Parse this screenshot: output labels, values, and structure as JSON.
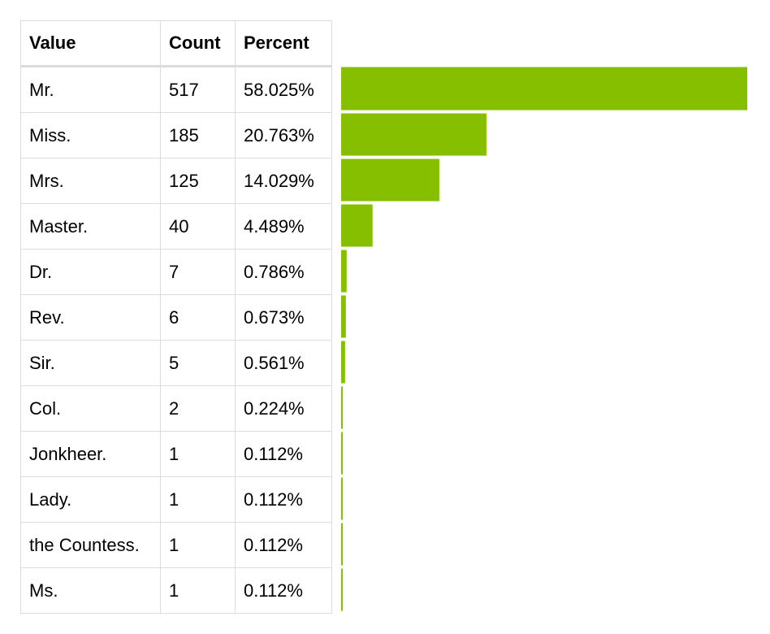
{
  "table": {
    "headers": {
      "value": "Value",
      "count": "Count",
      "percent": "Percent"
    },
    "rows": [
      {
        "value": "Mr.",
        "count": "517",
        "percent": "58.025%"
      },
      {
        "value": "Miss.",
        "count": "185",
        "percent": "20.763%"
      },
      {
        "value": "Mrs.",
        "count": "125",
        "percent": "14.029%"
      },
      {
        "value": "Master.",
        "count": "40",
        "percent": "4.489%"
      },
      {
        "value": "Dr.",
        "count": "7",
        "percent": "0.786%"
      },
      {
        "value": "Rev.",
        "count": "6",
        "percent": "0.673%"
      },
      {
        "value": "Sir.",
        "count": "5",
        "percent": "0.561%"
      },
      {
        "value": "Col.",
        "count": "2",
        "percent": "0.224%"
      },
      {
        "value": "Jonkheer.",
        "count": "1",
        "percent": "0.112%"
      },
      {
        "value": "Lady.",
        "count": "1",
        "percent": "0.112%"
      },
      {
        "value": "the Countess.",
        "count": "1",
        "percent": "0.112%"
      },
      {
        "value": "Ms.",
        "count": "1",
        "percent": "0.112%"
      }
    ]
  },
  "chart_data": {
    "type": "bar",
    "orientation": "horizontal",
    "categories": [
      "Mr.",
      "Miss.",
      "Mrs.",
      "Master.",
      "Dr.",
      "Rev.",
      "Sir.",
      "Col.",
      "Jonkheer.",
      "Lady.",
      "the Countess.",
      "Ms."
    ],
    "values": [
      517,
      185,
      125,
      40,
      7,
      6,
      5,
      2,
      1,
      1,
      1,
      1
    ],
    "percent": [
      58.025,
      20.763,
      14.029,
      4.489,
      0.786,
      0.673,
      0.561,
      0.224,
      0.112,
      0.112,
      0.112,
      0.112
    ],
    "bar_color": "#85bf00",
    "title": "",
    "xlabel": "",
    "ylabel": ""
  }
}
